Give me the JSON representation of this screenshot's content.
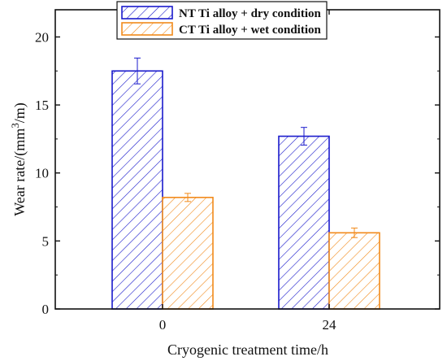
{
  "chart_data": {
    "type": "bar",
    "categories": [
      "0",
      "24"
    ],
    "series": [
      {
        "name": "NT Ti alloy  + dry condition",
        "values": [
          17.5,
          12.7
        ],
        "errors": [
          0.95,
          0.65
        ],
        "color": "#1a1acc"
      },
      {
        "name": "CT Ti alloy  + wet condition",
        "values": [
          8.2,
          5.6
        ],
        "errors": [
          0.3,
          0.35
        ],
        "color": "#f28a1a"
      }
    ],
    "xlabel": "Cryogenic treatment time/h",
    "ylabel_main": "Wear rate/(mm",
    "ylabel_sup": "3",
    "ylabel_tail": "/m)",
    "ylim": [
      0,
      22
    ],
    "yticks": [
      "0",
      "5",
      "10",
      "15",
      "20"
    ],
    "ytick_values": [
      0,
      5,
      10,
      15,
      20
    ],
    "grid": false,
    "legend_position": "top-center",
    "hatch": "diagonal"
  }
}
